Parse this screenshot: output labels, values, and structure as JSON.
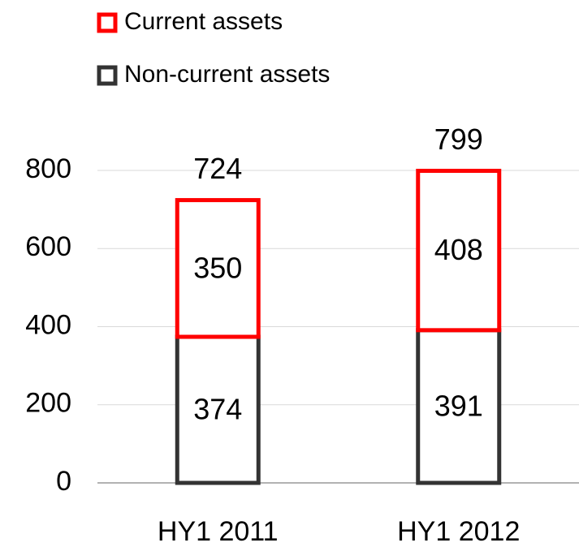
{
  "chart_data": {
    "type": "stacked_bar",
    "categories": [
      "HY1 2011",
      "HY1 2012"
    ],
    "series": [
      {
        "name": "Non-current assets",
        "color": "#333333",
        "values": [
          374,
          391
        ]
      },
      {
        "name": "Current assets",
        "color": "#ff0000",
        "values": [
          350,
          408
        ]
      }
    ],
    "totals": [
      724,
      799
    ],
    "ylim": [
      0,
      800
    ],
    "yticks": [
      0,
      200,
      400,
      600,
      800
    ],
    "grid": true,
    "legend": "top-left"
  }
}
